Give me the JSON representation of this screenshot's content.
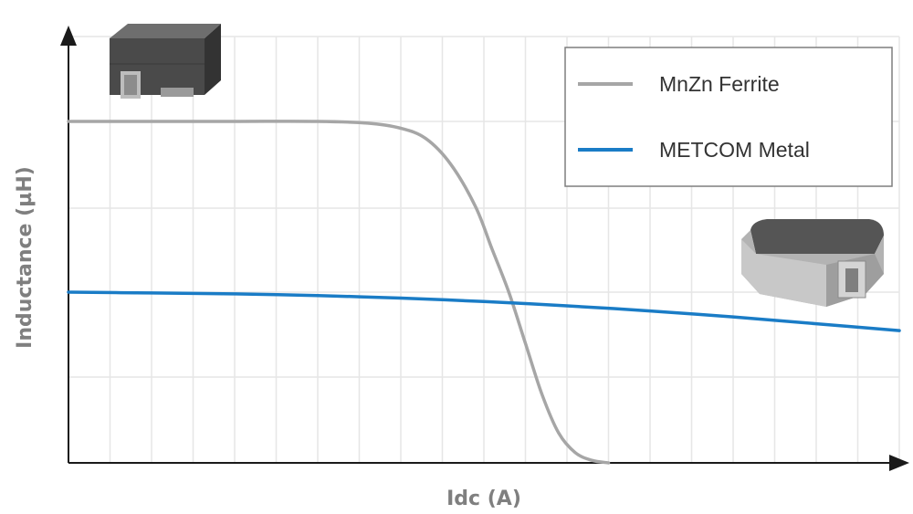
{
  "chart_data": {
    "type": "line",
    "xlabel": "Idc (A)",
    "ylabel": "Inductance (µH)",
    "x_range": [
      0,
      10
    ],
    "y_range": [
      0,
      4
    ],
    "ticks_labeled": false,
    "grid": true,
    "legend_position": "top-right",
    "series": [
      {
        "name": "MnZn Ferrite",
        "color": "#a6a6a6",
        "x": [
          0,
          1,
          2,
          3,
          3.6,
          4,
          4.3,
          4.6,
          4.9,
          5.1,
          5.3,
          5.5,
          5.7,
          5.9,
          6.1,
          6.3,
          6.5
        ],
        "y": [
          4.0,
          4.0,
          4.0,
          4.0,
          3.98,
          3.92,
          3.8,
          3.5,
          3.0,
          2.5,
          2.0,
          1.4,
          0.8,
          0.35,
          0.12,
          0.03,
          0.0
        ]
      },
      {
        "name": "METCOM Metal",
        "color": "#1a7cc6",
        "x": [
          0,
          1,
          2,
          3,
          4,
          5,
          6,
          7,
          8,
          9,
          10
        ],
        "y": [
          2.0,
          1.99,
          1.98,
          1.96,
          1.93,
          1.89,
          1.84,
          1.78,
          1.71,
          1.63,
          1.55
        ]
      }
    ]
  },
  "icons": {
    "ferrite_component": "ferrite-inductor-icon",
    "metal_component": "metal-inductor-icon"
  }
}
